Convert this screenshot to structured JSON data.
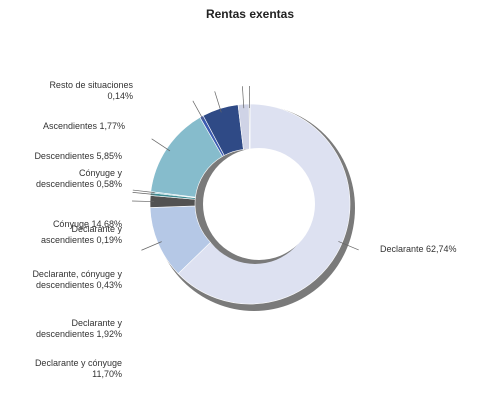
{
  "chart_data": {
    "type": "pie",
    "variant": "donut",
    "title": "Rentas exentas",
    "slices": [
      {
        "name": "Declarante",
        "value": 62.74,
        "label": "Declarante 62,74%",
        "color": "#dde1f1"
      },
      {
        "name": "Declarante y cónyuge",
        "value": 11.7,
        "label": "Declarante y cónyuge 11,70%",
        "color": "#b5c8e6"
      },
      {
        "name": "Declarante y descendientes",
        "value": 1.92,
        "label": "Declarante y descendientes 1,92%",
        "color": "#525252"
      },
      {
        "name": "Declarante, cónyuge y descendientes",
        "value": 0.43,
        "label": "Declarante, cónyuge y descendientes 0,43%",
        "color": "#3f8c94"
      },
      {
        "name": "Declarante y ascendientes",
        "value": 0.19,
        "label": "Declarante y ascendientes 0,19%",
        "color": "#6fb2c0"
      },
      {
        "name": "Cónyuge",
        "value": 14.68,
        "label": "Cónyuge 14,68%",
        "color": "#86bccc"
      },
      {
        "name": "Cónyuge y descendientes",
        "value": 0.58,
        "label": "Cónyuge y descendientes 0,58%",
        "color": "#3b5ab0"
      },
      {
        "name": "Descendientes",
        "value": 5.85,
        "label": "Descendientes 5,85%",
        "color": "#2f4a86"
      },
      {
        "name": "Ascendientes",
        "value": 1.77,
        "label": "Ascendientes 1,77%",
        "color": "#cfd3e6"
      },
      {
        "name": "Resto de situaciones",
        "value": 0.14,
        "label": "Resto de situaciones 0,14%",
        "color": "#8a8a8a"
      }
    ],
    "legend": "none"
  }
}
